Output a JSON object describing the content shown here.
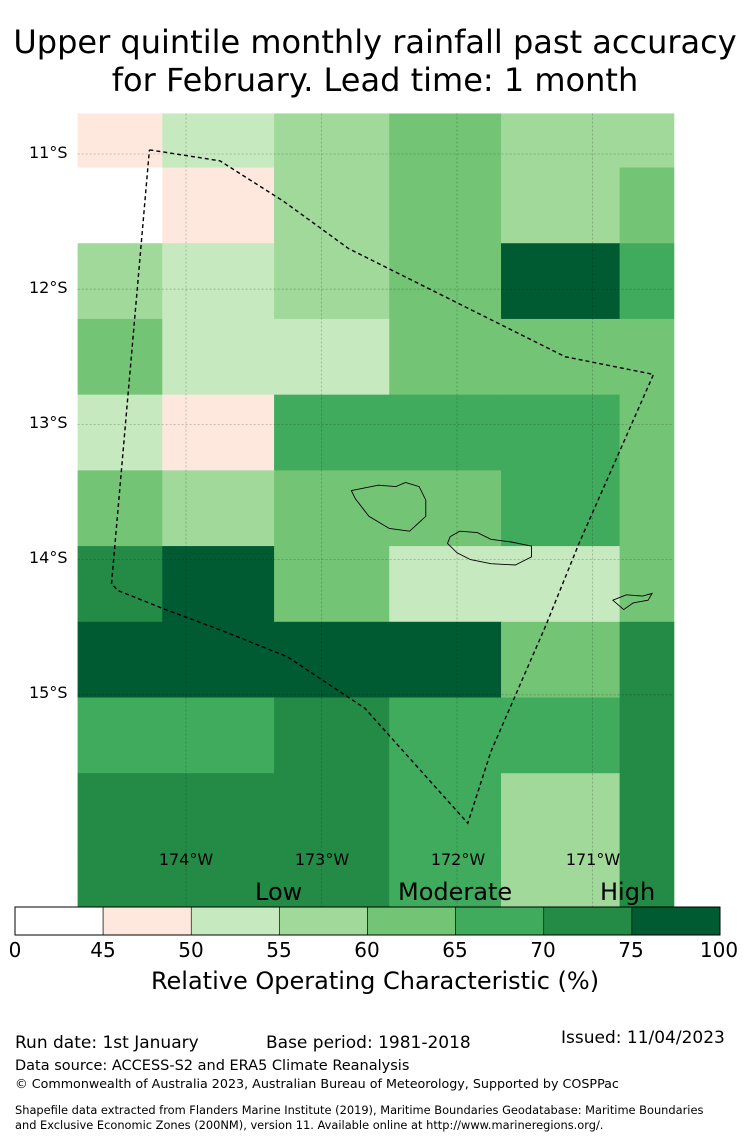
{
  "title": {
    "line1": "Upper quintile monthly rainfall past accuracy",
    "line2": "for February. Lead time: 1 month"
  },
  "axes": {
    "lat_labels": [
      "11°S",
      "12°S",
      "13°S",
      "14°S",
      "15°S"
    ],
    "lon_labels": [
      "174°W",
      "173°W",
      "172°W",
      "171°W"
    ]
  },
  "legend": {
    "categories": [
      "Low",
      "Moderate",
      "High"
    ],
    "ticks": [
      "0",
      "45",
      "50",
      "55",
      "60",
      "65",
      "70",
      "75",
      "100"
    ],
    "colors": [
      "#ffffff",
      "#fee8de",
      "#c7e9c0",
      "#a1d99b",
      "#74c476",
      "#41ab5d",
      "#238b45",
      "#005a32"
    ],
    "title": "Relative Operating Characteristic (%)"
  },
  "footer": {
    "run_date": "Run date: 1st January",
    "base_period": "Base period: 1981-2018",
    "issued": "Issued: 11/04/2023",
    "data_source": "Data source: ACCESS-S2 and ERA5 Climate Reanalysis",
    "copyright": "© Commonwealth of Australia 2023, Australian Bureau of Meteorology, Supported by COSPPac",
    "shapefile_line1": "Shapefile data extracted from Flanders Marine Institute (2019), Maritime Boundaries Geodatabase: Maritime Boundaries",
    "shapefile_line2": "and Exclusive Economic Zones (200NM), version 11. Available online at http://www.marineregions.org/."
  },
  "map_data": {
    "lon_edges": [
      -174.8,
      -174.175,
      -173.35,
      -172.5,
      -171.675,
      -170.8,
      -170.4
    ],
    "lat_edges": [
      -10.7,
      -11.1,
      -11.66,
      -12.22,
      -12.78,
      -13.34,
      -13.9,
      -14.46,
      -15.02,
      -15.58,
      -16.14,
      -16.7
    ],
    "cells": [
      [
        45,
        50,
        55,
        60,
        55,
        55
      ],
      [
        0,
        45,
        55,
        60,
        55,
        60
      ],
      [
        55,
        50,
        55,
        60,
        100,
        65
      ],
      [
        60,
        50,
        50,
        60,
        60,
        60
      ],
      [
        50,
        45,
        65,
        65,
        65,
        60
      ],
      [
        60,
        55,
        60,
        60,
        65,
        60
      ],
      [
        70,
        100,
        60,
        50,
        50,
        60
      ],
      [
        100,
        100,
        100,
        100,
        60,
        70
      ],
      [
        65,
        65,
        70,
        65,
        65,
        70
      ],
      [
        70,
        70,
        70,
        65,
        55,
        70
      ],
      [
        70,
        70,
        70,
        65,
        55,
        70
      ]
    ],
    "eez_boundary": [
      [
        -174.27,
        -10.97
      ],
      [
        -174.2,
        -10.98
      ],
      [
        -173.75,
        -11.05
      ],
      [
        -173.28,
        -11.35
      ],
      [
        -172.8,
        -11.7
      ],
      [
        -172.3,
        -11.95
      ],
      [
        -171.2,
        -12.5
      ],
      [
        -170.55,
        -12.63
      ],
      [
        -171.1,
        -13.88
      ],
      [
        -171.35,
        -14.5
      ],
      [
        -171.75,
        -15.42
      ],
      [
        -171.92,
        -15.95
      ],
      [
        -172.68,
        -15.1
      ],
      [
        -173.25,
        -14.72
      ],
      [
        -173.72,
        -14.53
      ],
      [
        -174.15,
        -14.37
      ],
      [
        -174.5,
        -14.23
      ],
      [
        -174.55,
        -14.18
      ],
      [
        -174.27,
        -10.97
      ]
    ],
    "islands": [
      [
        [
          -172.78,
          -13.49
        ],
        [
          -172.58,
          -13.45
        ],
        [
          -172.45,
          -13.46
        ],
        [
          -172.38,
          -13.43
        ],
        [
          -172.28,
          -13.46
        ],
        [
          -172.23,
          -13.56
        ],
        [
          -172.23,
          -13.68
        ],
        [
          -172.35,
          -13.79
        ],
        [
          -172.5,
          -13.77
        ],
        [
          -172.65,
          -13.68
        ],
        [
          -172.75,
          -13.55
        ]
      ],
      [
        [
          -172.05,
          -13.83
        ],
        [
          -171.98,
          -13.79
        ],
        [
          -171.85,
          -13.8
        ],
        [
          -171.75,
          -13.85
        ],
        [
          -171.6,
          -13.87
        ],
        [
          -171.45,
          -13.9
        ],
        [
          -171.45,
          -13.98
        ],
        [
          -171.57,
          -14.04
        ],
        [
          -171.75,
          -14.03
        ],
        [
          -171.9,
          -14.0
        ],
        [
          -172.0,
          -13.95
        ],
        [
          -172.07,
          -13.88
        ]
      ],
      [
        [
          -170.85,
          -14.3
        ],
        [
          -170.75,
          -14.26
        ],
        [
          -170.63,
          -14.27
        ],
        [
          -170.56,
          -14.25
        ],
        [
          -170.59,
          -14.3
        ],
        [
          -170.7,
          -14.32
        ],
        [
          -170.77,
          -14.37
        ]
      ]
    ]
  }
}
